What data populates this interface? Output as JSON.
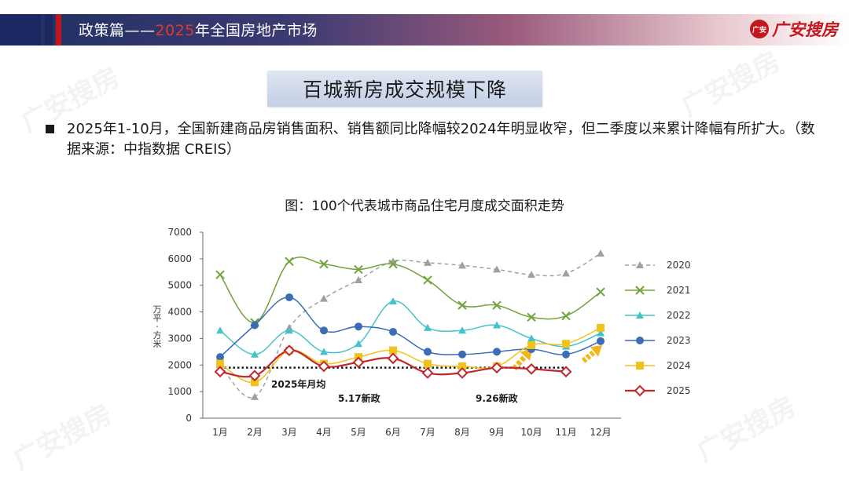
{
  "header": {
    "title_prefix": "政策篇——",
    "title_year": "2025",
    "title_suffix": "年全国房地产市场",
    "logo_badge": "广安",
    "logo_text": "广安搜房"
  },
  "slide_title": "百城新房成交规模下降",
  "bullet": {
    "text": "2025年1-10月，全国新建商品房销售面积、销售额同比降幅较2024年明显收窄，但二季度以来累计降幅有所扩大。（数据来源：中指数据 CREIS）"
  },
  "chart_caption": "图：100个代表城市商品住宅月度成交面积走势",
  "colors": {
    "s2020": "#a0a0a0",
    "s2021": "#72a33c",
    "s2022": "#43c3c9",
    "s2023": "#3a6db5",
    "s2024": "#f2c21a",
    "s2025": "#c0282d",
    "arrow": "#f2b51a"
  },
  "chart_data": {
    "type": "line",
    "title": "图：100个代表城市商品住宅月度成交面积走势",
    "ylabel": "万平方米",
    "ylim": [
      0,
      7000
    ],
    "yticks": [
      0,
      1000,
      2000,
      3000,
      4000,
      5000,
      6000,
      7000
    ],
    "categories": [
      "1月",
      "2月",
      "3月",
      "4月",
      "5月",
      "6月",
      "7月",
      "8月",
      "9月",
      "10月",
      "11月",
      "12月"
    ],
    "series": [
      {
        "name": "2020",
        "marker": "triangle",
        "dashed": true,
        "values": [
          2000,
          800,
          3400,
          4500,
          5200,
          5900,
          5850,
          5750,
          5600,
          5400,
          5450,
          6200
        ]
      },
      {
        "name": "2021",
        "marker": "x",
        "dashed": false,
        "values": [
          5400,
          3600,
          5900,
          5800,
          5600,
          5800,
          5200,
          4250,
          4250,
          3800,
          3850,
          4750
        ]
      },
      {
        "name": "2022",
        "marker": "triangle",
        "dashed": false,
        "values": [
          3300,
          2400,
          3300,
          2500,
          2800,
          4400,
          3400,
          3300,
          3500,
          3000,
          2700,
          3200
        ]
      },
      {
        "name": "2023",
        "marker": "circle",
        "dashed": false,
        "values": [
          2300,
          3500,
          4550,
          3300,
          3450,
          3250,
          2500,
          2400,
          2500,
          2600,
          2400,
          2900
        ]
      },
      {
        "name": "2024",
        "marker": "square",
        "dashed": false,
        "values": [
          2050,
          1350,
          2550,
          2050,
          2300,
          2550,
          2050,
          1950,
          1950,
          2750,
          2800,
          3400
        ]
      },
      {
        "name": "2025",
        "marker": "diamond",
        "dashed": false,
        "values": [
          1750,
          1600,
          2550,
          1950,
          2100,
          2250,
          1700,
          1700,
          1900,
          1850,
          1750,
          null
        ]
      }
    ],
    "reference_line": {
      "label": "2025年月均",
      "value": 1900
    },
    "annotations": [
      {
        "text": "5.17新政",
        "month": "4月"
      },
      {
        "text": "9.26新政",
        "month": "9月"
      }
    ],
    "legend_position": "right"
  }
}
